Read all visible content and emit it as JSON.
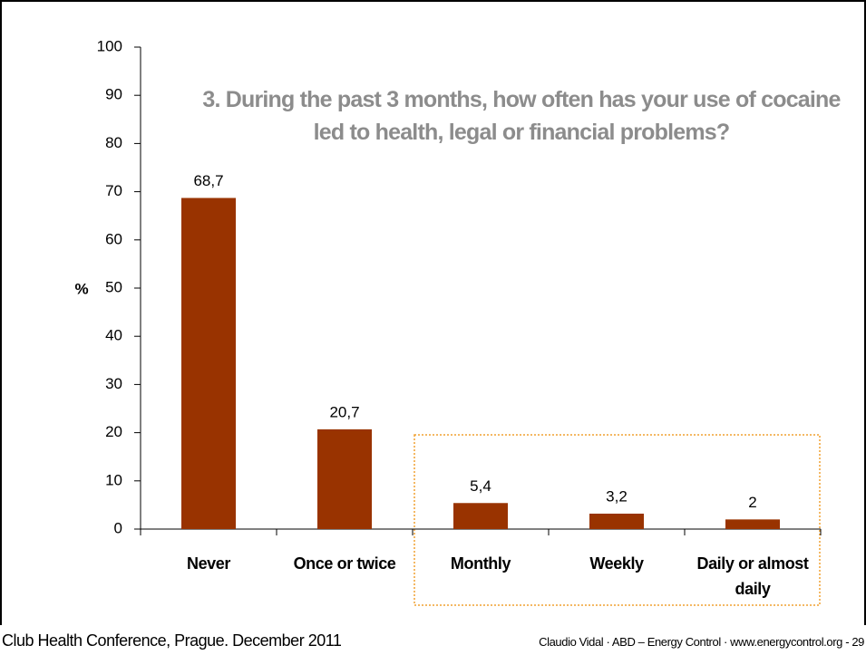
{
  "chart_data": {
    "type": "bar",
    "title": "3. During the past 3 months, how often has your use of cocaine led to health, legal or financial problems?",
    "y_label": "%",
    "categories": [
      "Never",
      "Once or twice",
      "Monthly",
      "Weekly",
      "Daily or almost daily"
    ],
    "values": [
      68.7,
      20.7,
      5.4,
      3.2,
      2
    ],
    "value_labels": [
      "68,7",
      "20,7",
      "5,4",
      "3,2",
      "2"
    ],
    "color": "#993300",
    "ylim": [
      0,
      100
    ],
    "yticks": [
      0,
      10,
      20,
      30,
      40,
      50,
      60,
      70,
      80,
      90,
      100
    ],
    "grid": false
  },
  "footer": {
    "left": "Club Health Conference, Prague. December 2011",
    "right": "Claudio Vidal · ABD – Energy Control · www.energycontrol.org - 29"
  }
}
